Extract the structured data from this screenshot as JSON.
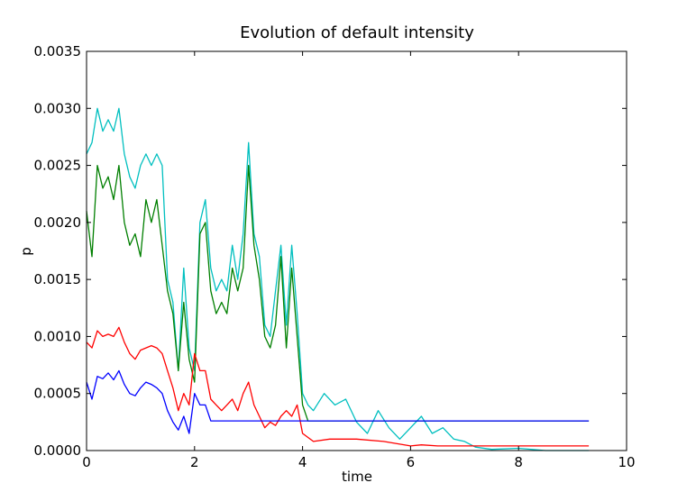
{
  "chart_data": {
    "type": "line",
    "title": "Evolution of default intensity",
    "xlabel": "time",
    "ylabel": "p",
    "xlim": [
      0,
      10
    ],
    "ylim": [
      0,
      0.0035
    ],
    "x_ticks": [
      0,
      2,
      4,
      6,
      8,
      10
    ],
    "x_tick_labels": [
      "0",
      "2",
      "4",
      "6",
      "8",
      "10"
    ],
    "y_ticks": [
      0,
      0.0005,
      0.001,
      0.0015,
      0.002,
      0.0025,
      0.003,
      0.0035
    ],
    "y_tick_labels": [
      "0.0000",
      "0.0005",
      "0.0010",
      "0.0015",
      "0.0020",
      "0.0025",
      "0.0030",
      "0.0035"
    ],
    "grid": false,
    "series": [
      {
        "name": "series-cyan",
        "color": "#00bfbf",
        "x": [
          0,
          0.1,
          0.2,
          0.3,
          0.4,
          0.5,
          0.6,
          0.7,
          0.8,
          0.9,
          1.0,
          1.1,
          1.2,
          1.3,
          1.4,
          1.5,
          1.6,
          1.7,
          1.8,
          1.9,
          2.0,
          2.1,
          2.2,
          2.3,
          2.4,
          2.5,
          2.6,
          2.7,
          2.8,
          2.9,
          3.0,
          3.1,
          3.2,
          3.3,
          3.4,
          3.5,
          3.6,
          3.7,
          3.8,
          3.9,
          4.0,
          4.1,
          4.2,
          4.4,
          4.6,
          4.8,
          5.0,
          5.2,
          5.4,
          5.6,
          5.8,
          6.0,
          6.2,
          6.4,
          6.6,
          6.8,
          7.0,
          7.2,
          7.5,
          8.0,
          8.5,
          9.0,
          9.3
        ],
        "values": [
          0.0026,
          0.0027,
          0.003,
          0.0028,
          0.0029,
          0.0028,
          0.003,
          0.0026,
          0.0024,
          0.0023,
          0.0025,
          0.0026,
          0.0025,
          0.0026,
          0.0025,
          0.0015,
          0.0013,
          0.0007,
          0.0016,
          0.0009,
          0.0007,
          0.002,
          0.0022,
          0.0016,
          0.0014,
          0.0015,
          0.0014,
          0.0018,
          0.0015,
          0.0019,
          0.0027,
          0.0019,
          0.0017,
          0.0011,
          0.001,
          0.0014,
          0.0018,
          0.0011,
          0.0018,
          0.0012,
          0.0005,
          0.0004,
          0.00035,
          0.0005,
          0.0004,
          0.00045,
          0.00025,
          0.00015,
          0.00035,
          0.0002,
          0.0001,
          0.0002,
          0.0003,
          0.00015,
          0.0002,
          0.0001,
          8e-05,
          3e-05,
          1e-05,
          2e-05,
          0.0,
          0.0,
          0.0
        ]
      },
      {
        "name": "series-green",
        "color": "#007f00",
        "x": [
          0,
          0.1,
          0.2,
          0.3,
          0.4,
          0.5,
          0.6,
          0.7,
          0.8,
          0.9,
          1.0,
          1.1,
          1.2,
          1.3,
          1.4,
          1.5,
          1.6,
          1.7,
          1.8,
          1.9,
          2.0,
          2.1,
          2.2,
          2.3,
          2.4,
          2.5,
          2.6,
          2.7,
          2.8,
          2.9,
          3.0,
          3.1,
          3.2,
          3.3,
          3.4,
          3.5,
          3.6,
          3.7,
          3.8,
          3.9,
          4.0,
          4.1,
          4.5,
          5.0,
          5.5,
          6.0,
          6.5,
          7.0,
          7.5,
          8.0,
          8.5,
          9.0,
          9.3
        ],
        "values": [
          0.0021,
          0.0017,
          0.0025,
          0.0023,
          0.0024,
          0.0022,
          0.0025,
          0.002,
          0.0018,
          0.0019,
          0.0017,
          0.0022,
          0.002,
          0.0022,
          0.0018,
          0.0014,
          0.0012,
          0.0007,
          0.0013,
          0.0008,
          0.0006,
          0.0019,
          0.002,
          0.0014,
          0.0012,
          0.0013,
          0.0012,
          0.0016,
          0.0014,
          0.0016,
          0.0025,
          0.0018,
          0.0015,
          0.001,
          0.0009,
          0.0011,
          0.0017,
          0.0009,
          0.0016,
          0.001,
          0.0004,
          0.00026,
          0.00026,
          0.00026,
          0.00026,
          0.00026,
          0.00026,
          0.00026,
          0.00026,
          0.00026,
          0.00026,
          0.00026,
          0.00026
        ]
      },
      {
        "name": "series-red",
        "color": "#ff0000",
        "x": [
          0,
          0.1,
          0.2,
          0.3,
          0.4,
          0.5,
          0.6,
          0.7,
          0.8,
          0.9,
          1.0,
          1.1,
          1.2,
          1.3,
          1.4,
          1.5,
          1.6,
          1.7,
          1.8,
          1.9,
          2.0,
          2.1,
          2.2,
          2.3,
          2.4,
          2.5,
          2.6,
          2.7,
          2.8,
          2.9,
          3.0,
          3.1,
          3.2,
          3.3,
          3.4,
          3.5,
          3.6,
          3.7,
          3.8,
          3.9,
          4.0,
          4.2,
          4.5,
          5.0,
          5.5,
          6.0,
          6.2,
          6.5,
          7.0,
          8.0,
          9.0,
          9.3
        ],
        "values": [
          0.00095,
          0.0009,
          0.00105,
          0.001,
          0.00102,
          0.001,
          0.00108,
          0.00095,
          0.00085,
          0.0008,
          0.00088,
          0.0009,
          0.00092,
          0.0009,
          0.00085,
          0.0007,
          0.00055,
          0.00035,
          0.0005,
          0.0004,
          0.00085,
          0.0007,
          0.0007,
          0.00045,
          0.0004,
          0.00035,
          0.0004,
          0.00045,
          0.00035,
          0.0005,
          0.0006,
          0.0004,
          0.0003,
          0.0002,
          0.00025,
          0.00022,
          0.0003,
          0.00035,
          0.0003,
          0.0004,
          0.00015,
          8e-05,
          0.0001,
          0.0001,
          8e-05,
          4e-05,
          5e-05,
          4e-05,
          4e-05,
          4e-05,
          4e-05,
          4e-05
        ]
      },
      {
        "name": "series-blue",
        "color": "#0000ff",
        "x": [
          0,
          0.1,
          0.2,
          0.3,
          0.4,
          0.5,
          0.6,
          0.7,
          0.8,
          0.9,
          1.0,
          1.1,
          1.2,
          1.3,
          1.4,
          1.5,
          1.6,
          1.7,
          1.8,
          1.9,
          2.0,
          2.1,
          2.2,
          2.3,
          3.0,
          4.0,
          5.0,
          6.0,
          7.0,
          8.0,
          9.0,
          9.3
        ],
        "values": [
          0.0006,
          0.00045,
          0.00065,
          0.00063,
          0.00068,
          0.00062,
          0.0007,
          0.00058,
          0.0005,
          0.00048,
          0.00055,
          0.0006,
          0.00058,
          0.00055,
          0.0005,
          0.00035,
          0.00025,
          0.00018,
          0.0003,
          0.00015,
          0.0005,
          0.0004,
          0.0004,
          0.00026,
          0.00026,
          0.00026,
          0.00026,
          0.00026,
          0.00026,
          0.00026,
          0.00026,
          0.00026
        ]
      }
    ]
  }
}
